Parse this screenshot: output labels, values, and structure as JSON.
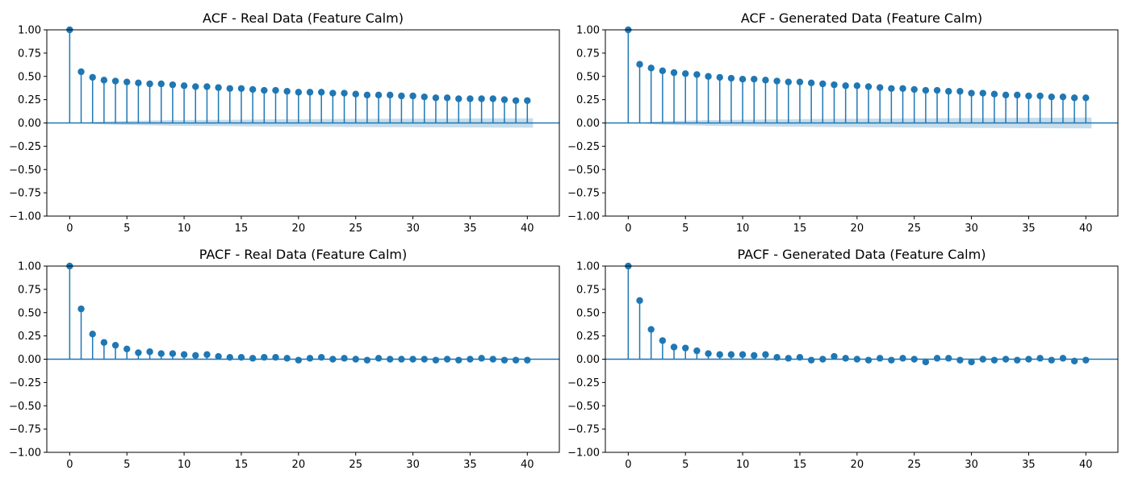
{
  "chart_data": [
    {
      "type": "stem",
      "title": "ACF - Real Data (Feature Calm)",
      "xlabel": "",
      "ylabel": "",
      "x": [
        0,
        1,
        2,
        3,
        4,
        5,
        6,
        7,
        8,
        9,
        10,
        11,
        12,
        13,
        14,
        15,
        16,
        17,
        18,
        19,
        20,
        21,
        22,
        23,
        24,
        25,
        26,
        27,
        28,
        29,
        30,
        31,
        32,
        33,
        34,
        35,
        36,
        37,
        38,
        39,
        40
      ],
      "values": [
        1.0,
        0.55,
        0.49,
        0.46,
        0.45,
        0.44,
        0.43,
        0.42,
        0.42,
        0.41,
        0.4,
        0.39,
        0.39,
        0.38,
        0.37,
        0.37,
        0.36,
        0.35,
        0.35,
        0.34,
        0.33,
        0.33,
        0.33,
        0.32,
        0.32,
        0.31,
        0.3,
        0.3,
        0.3,
        0.29,
        0.29,
        0.28,
        0.27,
        0.27,
        0.26,
        0.26,
        0.26,
        0.26,
        0.25,
        0.24,
        0.24
      ],
      "confidence_band": [
        0,
        0,
        0.01,
        0.015,
        0.02,
        0.022,
        0.024,
        0.026,
        0.028,
        0.03,
        0.031,
        0.032,
        0.033,
        0.034,
        0.035,
        0.036,
        0.037,
        0.038,
        0.039,
        0.04,
        0.04,
        0.041,
        0.042,
        0.042,
        0.043,
        0.044,
        0.044,
        0.045,
        0.045,
        0.046,
        0.046,
        0.047,
        0.047,
        0.048,
        0.048,
        0.049,
        0.049,
        0.05,
        0.05,
        0.05,
        0.051
      ],
      "xlim": [
        -2,
        42.8
      ],
      "ylim": [
        -1.0,
        1.0
      ],
      "xticks": [
        0,
        5,
        10,
        15,
        20,
        25,
        30,
        35,
        40
      ],
      "yticks": [
        -1.0,
        -0.75,
        -0.5,
        -0.25,
        0.0,
        0.25,
        0.5,
        0.75,
        1.0
      ],
      "ytick_labels": [
        "−1.00",
        "−0.75",
        "−0.50",
        "−0.25",
        "0.00",
        "0.25",
        "0.50",
        "0.75",
        "1.00"
      ]
    },
    {
      "type": "stem",
      "title": "ACF - Generated Data (Feature Calm)",
      "xlabel": "",
      "ylabel": "",
      "x": [
        0,
        1,
        2,
        3,
        4,
        5,
        6,
        7,
        8,
        9,
        10,
        11,
        12,
        13,
        14,
        15,
        16,
        17,
        18,
        19,
        20,
        21,
        22,
        23,
        24,
        25,
        26,
        27,
        28,
        29,
        30,
        31,
        32,
        33,
        34,
        35,
        36,
        37,
        38,
        39,
        40
      ],
      "values": [
        1.0,
        0.63,
        0.59,
        0.56,
        0.54,
        0.53,
        0.52,
        0.5,
        0.49,
        0.48,
        0.47,
        0.47,
        0.46,
        0.45,
        0.44,
        0.44,
        0.43,
        0.42,
        0.41,
        0.4,
        0.4,
        0.39,
        0.38,
        0.37,
        0.37,
        0.36,
        0.35,
        0.35,
        0.34,
        0.34,
        0.32,
        0.32,
        0.31,
        0.3,
        0.3,
        0.29,
        0.29,
        0.28,
        0.28,
        0.27,
        0.27
      ],
      "confidence_band": [
        0,
        0,
        0.012,
        0.018,
        0.022,
        0.025,
        0.027,
        0.03,
        0.032,
        0.034,
        0.035,
        0.036,
        0.038,
        0.039,
        0.04,
        0.041,
        0.042,
        0.043,
        0.044,
        0.045,
        0.046,
        0.047,
        0.048,
        0.048,
        0.049,
        0.05,
        0.05,
        0.051,
        0.052,
        0.052,
        0.053,
        0.053,
        0.054,
        0.054,
        0.055,
        0.055,
        0.056,
        0.056,
        0.057,
        0.057,
        0.058
      ],
      "xlim": [
        -2,
        42.8
      ],
      "ylim": [
        -1.0,
        1.0
      ],
      "xticks": [
        0,
        5,
        10,
        15,
        20,
        25,
        30,
        35,
        40
      ],
      "yticks": [
        -1.0,
        -0.75,
        -0.5,
        -0.25,
        0.0,
        0.25,
        0.5,
        0.75,
        1.0
      ],
      "ytick_labels": [
        "−1.00",
        "−0.75",
        "−0.50",
        "−0.25",
        "0.00",
        "0.25",
        "0.50",
        "0.75",
        "1.00"
      ]
    },
    {
      "type": "stem",
      "title": "PACF - Real Data (Feature Calm)",
      "xlabel": "",
      "ylabel": "",
      "x": [
        0,
        1,
        2,
        3,
        4,
        5,
        6,
        7,
        8,
        9,
        10,
        11,
        12,
        13,
        14,
        15,
        16,
        17,
        18,
        19,
        20,
        21,
        22,
        23,
        24,
        25,
        26,
        27,
        28,
        29,
        30,
        31,
        32,
        33,
        34,
        35,
        36,
        37,
        38,
        39,
        40
      ],
      "values": [
        1.0,
        0.54,
        0.27,
        0.18,
        0.15,
        0.11,
        0.07,
        0.08,
        0.06,
        0.06,
        0.05,
        0.04,
        0.05,
        0.03,
        0.02,
        0.02,
        0.01,
        0.02,
        0.02,
        0.01,
        -0.01,
        0.01,
        0.02,
        0.0,
        0.01,
        0.0,
        -0.01,
        0.01,
        0.0,
        0.0,
        0.0,
        0.0,
        -0.01,
        0.0,
        -0.01,
        0.0,
        0.01,
        0.0,
        -0.01,
        -0.01,
        -0.01
      ],
      "confidence_band": [
        0,
        0.006,
        0.006,
        0.006,
        0.006,
        0.006,
        0.006,
        0.006,
        0.006,
        0.006,
        0.006,
        0.006,
        0.006,
        0.006,
        0.006,
        0.006,
        0.006,
        0.006,
        0.006,
        0.006,
        0.006,
        0.006,
        0.006,
        0.006,
        0.006,
        0.006,
        0.006,
        0.006,
        0.006,
        0.006,
        0.006,
        0.006,
        0.006,
        0.006,
        0.006,
        0.006,
        0.006,
        0.006,
        0.006,
        0.006,
        0.006
      ],
      "xlim": [
        -2,
        42.8
      ],
      "ylim": [
        -1.0,
        1.0
      ],
      "xticks": [
        0,
        5,
        10,
        15,
        20,
        25,
        30,
        35,
        40
      ],
      "yticks": [
        -1.0,
        -0.75,
        -0.5,
        -0.25,
        0.0,
        0.25,
        0.5,
        0.75,
        1.0
      ],
      "ytick_labels": [
        "−1.00",
        "−0.75",
        "−0.50",
        "−0.25",
        "0.00",
        "0.25",
        "0.50",
        "0.75",
        "1.00"
      ]
    },
    {
      "type": "stem",
      "title": "PACF - Generated Data (Feature Calm)",
      "xlabel": "",
      "ylabel": "",
      "x": [
        0,
        1,
        2,
        3,
        4,
        5,
        6,
        7,
        8,
        9,
        10,
        11,
        12,
        13,
        14,
        15,
        16,
        17,
        18,
        19,
        20,
        21,
        22,
        23,
        24,
        25,
        26,
        27,
        28,
        29,
        30,
        31,
        32,
        33,
        34,
        35,
        36,
        37,
        38,
        39,
        40
      ],
      "values": [
        1.0,
        0.63,
        0.32,
        0.2,
        0.13,
        0.12,
        0.09,
        0.06,
        0.05,
        0.05,
        0.05,
        0.04,
        0.05,
        0.02,
        0.01,
        0.02,
        -0.01,
        0.0,
        0.03,
        0.01,
        0.0,
        -0.01,
        0.01,
        -0.01,
        0.01,
        0.0,
        -0.03,
        0.01,
        0.01,
        -0.01,
        -0.03,
        0.0,
        -0.01,
        0.0,
        -0.01,
        0.0,
        0.01,
        -0.01,
        0.01,
        -0.02,
        -0.01
      ],
      "confidence_band": [
        0,
        0.006,
        0.006,
        0.006,
        0.006,
        0.006,
        0.006,
        0.006,
        0.006,
        0.006,
        0.006,
        0.006,
        0.006,
        0.006,
        0.006,
        0.006,
        0.006,
        0.006,
        0.006,
        0.006,
        0.006,
        0.006,
        0.006,
        0.006,
        0.006,
        0.006,
        0.006,
        0.006,
        0.006,
        0.006,
        0.006,
        0.006,
        0.006,
        0.006,
        0.006,
        0.006,
        0.006,
        0.006,
        0.006,
        0.006,
        0.006
      ],
      "xlim": [
        -2,
        42.8
      ],
      "ylim": [
        -1.0,
        1.0
      ],
      "xticks": [
        0,
        5,
        10,
        15,
        20,
        25,
        30,
        35,
        40
      ],
      "yticks": [
        -1.0,
        -0.75,
        -0.5,
        -0.25,
        0.0,
        0.25,
        0.5,
        0.75,
        1.0
      ],
      "ytick_labels": [
        "−1.00",
        "−0.75",
        "−0.50",
        "−0.25",
        "0.00",
        "0.25",
        "0.50",
        "0.75",
        "1.00"
      ]
    }
  ],
  "colors": {
    "stem": "#1f77b4",
    "band": "#1f77b4",
    "frame": "#000000",
    "text": "#000000"
  }
}
